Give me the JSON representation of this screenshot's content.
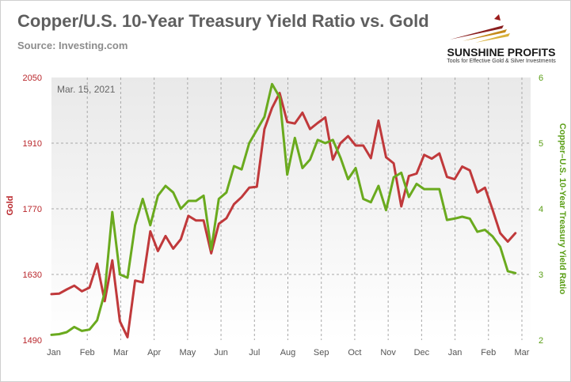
{
  "header": {
    "title": "Copper/U.S. 10-Year Treasury Yield Ratio vs. Gold",
    "source": "Source: Investing.com"
  },
  "logo": {
    "name": "SUNSHINE PROFITS",
    "tagline": "Tools for Effective Gold & Silver Investments",
    "icon": "sunshine-rays-logo"
  },
  "colors": {
    "gold": "#c0393b",
    "ratio": "#6aaa1e",
    "axis_left": "#b9262b",
    "axis_right": "#5a9e16",
    "plot_bg_top": "#e9e9e9",
    "plot_bg_bottom": "#ffffff"
  },
  "chart_data": {
    "type": "line",
    "annotation": "Mar. 15, 2021",
    "x_ticks": [
      "Jan",
      "Feb",
      "Mar",
      "Apr",
      "May",
      "Jun",
      "Jul",
      "Aug",
      "Sep",
      "Oct",
      "Nov",
      "Dec",
      "Jan",
      "Feb",
      "Mar"
    ],
    "x_range": [
      0,
      63
    ],
    "y_left": {
      "label": "Gold",
      "ticks": [
        2050,
        1910,
        1770,
        1630,
        1490
      ],
      "range": [
        1490,
        2050
      ]
    },
    "y_right": {
      "label": "Copper–U.S. 10-Year Treasury Yield Ratio",
      "ticks": [
        6,
        5,
        4,
        3,
        2
      ],
      "range": [
        2,
        6
      ]
    },
    "grid": true,
    "series": [
      {
        "axis": "left",
        "values": [
          [
            0,
            1588
          ],
          [
            1,
            1589
          ],
          [
            2,
            1598
          ],
          [
            3,
            1606
          ],
          [
            4,
            1594
          ],
          [
            5,
            1602
          ],
          [
            6,
            1653
          ],
          [
            7,
            1573
          ],
          [
            8,
            1660
          ],
          [
            9,
            1530
          ],
          [
            10,
            1496
          ],
          [
            11,
            1617
          ],
          [
            12,
            1613
          ],
          [
            13,
            1722
          ],
          [
            14,
            1680
          ],
          [
            15,
            1712
          ],
          [
            16,
            1685
          ],
          [
            17,
            1705
          ],
          [
            18,
            1755
          ],
          [
            19,
            1745
          ],
          [
            20,
            1745
          ],
          [
            21,
            1675
          ],
          [
            22,
            1738
          ],
          [
            23,
            1750
          ],
          [
            24,
            1780
          ],
          [
            25,
            1795
          ],
          [
            26,
            1815
          ],
          [
            27,
            1817
          ],
          [
            28,
            1940
          ],
          [
            29,
            1985
          ],
          [
            30,
            2017
          ],
          [
            31,
            1955
          ],
          [
            32,
            1952
          ],
          [
            33,
            1975
          ],
          [
            34,
            1940
          ],
          [
            35,
            1953
          ],
          [
            36,
            1965
          ],
          [
            37,
            1875
          ],
          [
            38,
            1910
          ],
          [
            39,
            1925
          ],
          [
            40,
            1905
          ],
          [
            41,
            1905
          ],
          [
            42,
            1878
          ],
          [
            43,
            1958
          ],
          [
            44,
            1880
          ],
          [
            45,
            1867
          ],
          [
            46,
            1775
          ],
          [
            47,
            1840
          ],
          [
            48,
            1845
          ],
          [
            49,
            1885
          ],
          [
            50,
            1877
          ],
          [
            51,
            1888
          ],
          [
            52,
            1838
          ],
          [
            53,
            1833
          ],
          [
            54,
            1860
          ],
          [
            55,
            1852
          ],
          [
            56,
            1805
          ],
          [
            57,
            1815
          ],
          [
            58,
            1768
          ],
          [
            59,
            1718
          ],
          [
            60,
            1700
          ],
          [
            61,
            1718
          ]
        ]
      },
      {
        "axis": "right",
        "values": [
          [
            0,
            2.08
          ],
          [
            1,
            2.09
          ],
          [
            2,
            2.12
          ],
          [
            3,
            2.2
          ],
          [
            4,
            2.14
          ],
          [
            5,
            2.16
          ],
          [
            6,
            2.3
          ],
          [
            7,
            2.72
          ],
          [
            8,
            3.95
          ],
          [
            9,
            3.0
          ],
          [
            10,
            2.95
          ],
          [
            11,
            3.75
          ],
          [
            12,
            4.15
          ],
          [
            13,
            3.75
          ],
          [
            14,
            4.2
          ],
          [
            15,
            4.35
          ],
          [
            16,
            4.25
          ],
          [
            17,
            4.0
          ],
          [
            18,
            4.12
          ],
          [
            19,
            4.12
          ],
          [
            20,
            4.2
          ],
          [
            21,
            3.38
          ],
          [
            22,
            4.15
          ],
          [
            23,
            4.25
          ],
          [
            24,
            4.65
          ],
          [
            25,
            4.6
          ],
          [
            26,
            5.0
          ],
          [
            27,
            5.2
          ],
          [
            28,
            5.4
          ],
          [
            29,
            5.9
          ],
          [
            30,
            5.7
          ],
          [
            31,
            4.52
          ],
          [
            32,
            5.08
          ],
          [
            33,
            4.62
          ],
          [
            34,
            4.75
          ],
          [
            35,
            5.05
          ],
          [
            36,
            5.0
          ],
          [
            37,
            5.05
          ],
          [
            38,
            4.78
          ],
          [
            39,
            4.45
          ],
          [
            40,
            4.62
          ],
          [
            41,
            4.15
          ],
          [
            42,
            4.1
          ],
          [
            43,
            4.35
          ],
          [
            44,
            3.98
          ],
          [
            45,
            4.48
          ],
          [
            46,
            4.55
          ],
          [
            47,
            4.18
          ],
          [
            48,
            4.38
          ],
          [
            49,
            4.3
          ],
          [
            50,
            4.3
          ],
          [
            51,
            4.3
          ],
          [
            52,
            3.83
          ],
          [
            53,
            3.85
          ],
          [
            54,
            3.88
          ],
          [
            55,
            3.85
          ],
          [
            56,
            3.65
          ],
          [
            57,
            3.68
          ],
          [
            58,
            3.58
          ],
          [
            59,
            3.42
          ],
          [
            60,
            3.05
          ],
          [
            61,
            3.02
          ]
        ]
      }
    ]
  }
}
